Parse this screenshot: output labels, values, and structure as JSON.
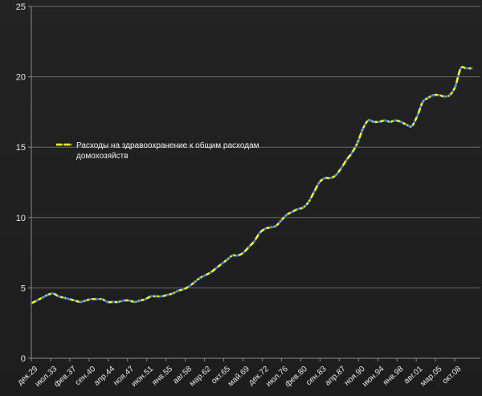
{
  "chart_data": {
    "type": "line",
    "title": "",
    "xlabel": "",
    "ylabel": "",
    "ylim": [
      0,
      25
    ],
    "yticks": [
      0,
      5,
      10,
      15,
      20,
      25
    ],
    "grid": "horizontal",
    "legend_position": "left-middle",
    "categories": [
      "дек.29",
      "июл.33",
      "фев.37",
      "сен.40",
      "апр.44",
      "ноя.47",
      "июн.51",
      "янв.55",
      "авг.58",
      "мар.62",
      "окт.65",
      "май.69",
      "дек.72",
      "июл.76",
      "фев.80",
      "сен.83",
      "апр.87",
      "ноя.90",
      "июн.94",
      "янв.98",
      "авг.01",
      "мар.05",
      "окт.08"
    ],
    "series": [
      {
        "name": "Расходы на здравоохранение к общим расходам домохозяйств",
        "name_lines": [
          "Расходы на здравоохранение к общим расходам",
          "домохозяйств"
        ],
        "color": "#ffff00",
        "marker_color": "#4a7fcf",
        "x": [
          1929,
          1930,
          1931,
          1932,
          1933,
          1934,
          1935,
          1936,
          1937,
          1938,
          1939,
          1940,
          1941,
          1942,
          1943,
          1944,
          1945,
          1946,
          1947,
          1948,
          1949,
          1950,
          1951,
          1952,
          1953,
          1954,
          1955,
          1956,
          1957,
          1958,
          1959,
          1960,
          1961,
          1962,
          1963,
          1964,
          1965,
          1966,
          1967,
          1968,
          1969,
          1970,
          1971,
          1972,
          1973,
          1974,
          1975,
          1976,
          1977,
          1978,
          1979,
          1980,
          1981,
          1982,
          1983,
          1984,
          1985,
          1986,
          1987,
          1988,
          1989,
          1990,
          1991,
          1992,
          1993,
          1994,
          1995,
          1996,
          1997,
          1998,
          1999,
          2000,
          2001,
          2002,
          2003,
          2004,
          2005,
          2006,
          2007,
          2008,
          2009,
          2010
        ],
        "values": [
          3.9,
          4.1,
          4.3,
          4.5,
          4.6,
          4.4,
          4.3,
          4.2,
          4.1,
          4.0,
          4.1,
          4.2,
          4.2,
          4.2,
          4.0,
          4.0,
          4.0,
          4.1,
          4.1,
          4.0,
          4.1,
          4.2,
          4.4,
          4.4,
          4.4,
          4.5,
          4.6,
          4.8,
          4.9,
          5.1,
          5.4,
          5.7,
          5.9,
          6.1,
          6.4,
          6.7,
          7.0,
          7.3,
          7.3,
          7.5,
          7.9,
          8.3,
          8.9,
          9.2,
          9.3,
          9.4,
          9.8,
          10.2,
          10.4,
          10.6,
          10.7,
          11.1,
          11.8,
          12.5,
          12.8,
          12.8,
          13.0,
          13.5,
          14.1,
          14.6,
          15.3,
          16.3,
          16.9,
          16.8,
          16.8,
          16.9,
          16.8,
          16.9,
          16.8,
          16.6,
          16.5,
          17.2,
          18.2,
          18.5,
          18.7,
          18.7,
          18.6,
          18.7,
          19.3,
          20.6,
          20.6,
          20.6
        ]
      }
    ]
  }
}
